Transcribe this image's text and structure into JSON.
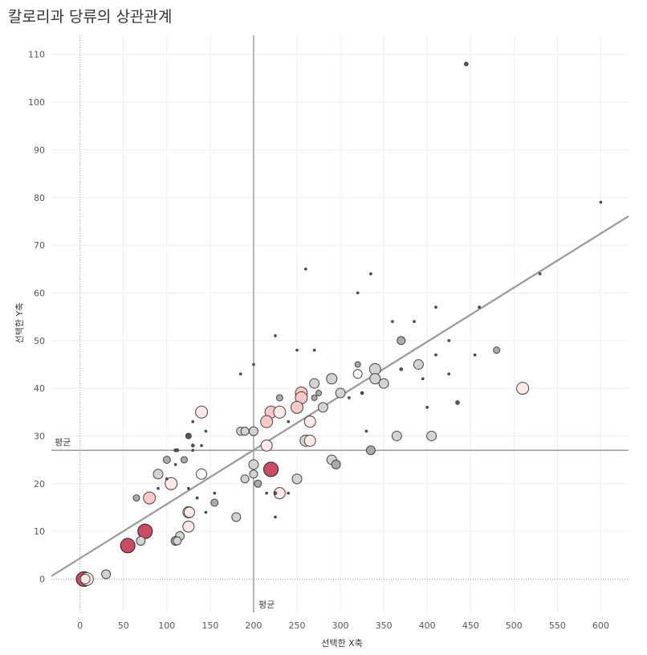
{
  "title": "칼로리과 당류의 상관관계",
  "chart_data": {
    "type": "scatter",
    "title": "칼로리과 당류의 상관관계",
    "xlabel": "선택한 X축",
    "ylabel": "선택한 Y축",
    "xlim": [
      -33,
      632
    ],
    "ylim": [
      -7,
      114
    ],
    "xticks": [
      0,
      50,
      100,
      150,
      200,
      250,
      300,
      350,
      400,
      450,
      500,
      550,
      600
    ],
    "yticks": [
      0,
      10,
      20,
      30,
      40,
      50,
      60,
      70,
      80,
      90,
      100,
      110
    ],
    "grid": true,
    "avg_label": "평균",
    "avg_x": 200,
    "avg_y": 27,
    "trendline": {
      "intercept": 4.35,
      "slope": 0.1135
    },
    "colors": {
      "dark": "#555555",
      "gray": "#aaaaaa",
      "light_gray": "#d3d3d3",
      "white": "#ffffff",
      "pink": "#f7cac6",
      "pink_light": "#fde8e6",
      "red": "#cd4a63"
    },
    "points": [
      {
        "x": 445,
        "y": 108,
        "r": 2.5,
        "c": "dark"
      },
      {
        "x": 600,
        "y": 79,
        "r": 1.5,
        "c": "dark"
      },
      {
        "x": 260,
        "y": 65,
        "r": 1.5,
        "c": "dark"
      },
      {
        "x": 335,
        "y": 64,
        "r": 1.5,
        "c": "dark"
      },
      {
        "x": 530,
        "y": 64,
        "r": 1.5,
        "c": "dark"
      },
      {
        "x": 320,
        "y": 60,
        "r": 1.5,
        "c": "dark"
      },
      {
        "x": 410,
        "y": 57,
        "r": 1.5,
        "c": "dark"
      },
      {
        "x": 460,
        "y": 57,
        "r": 1.5,
        "c": "dark"
      },
      {
        "x": 360,
        "y": 54,
        "r": 1.5,
        "c": "dark"
      },
      {
        "x": 385,
        "y": 54,
        "r": 1.5,
        "c": "dark"
      },
      {
        "x": 225,
        "y": 51,
        "r": 1.5,
        "c": "dark"
      },
      {
        "x": 370,
        "y": 50,
        "r": 5,
        "c": "gray"
      },
      {
        "x": 425,
        "y": 50,
        "r": 1.5,
        "c": "dark"
      },
      {
        "x": 250,
        "y": 48,
        "r": 1.5,
        "c": "dark"
      },
      {
        "x": 270,
        "y": 48,
        "r": 1.5,
        "c": "dark"
      },
      {
        "x": 480,
        "y": 48,
        "r": 4,
        "c": "gray"
      },
      {
        "x": 410,
        "y": 47,
        "r": 1.5,
        "c": "dark"
      },
      {
        "x": 455,
        "y": 47,
        "r": 1.5,
        "c": "dark"
      },
      {
        "x": 200,
        "y": 45,
        "r": 1.5,
        "c": "dark"
      },
      {
        "x": 320,
        "y": 45,
        "r": 3.5,
        "c": "gray"
      },
      {
        "x": 390,
        "y": 45,
        "r": 6,
        "c": "light_gray"
      },
      {
        "x": 340,
        "y": 44,
        "r": 7,
        "c": "light_gray"
      },
      {
        "x": 370,
        "y": 44,
        "r": 2,
        "c": "dark"
      },
      {
        "x": 185,
        "y": 43,
        "r": 1.5,
        "c": "dark"
      },
      {
        "x": 320,
        "y": 43,
        "r": 5.5,
        "c": "white"
      },
      {
        "x": 425,
        "y": 43,
        "r": 1.5,
        "c": "dark"
      },
      {
        "x": 290,
        "y": 42,
        "r": 6.5,
        "c": "light_gray"
      },
      {
        "x": 340,
        "y": 42,
        "r": 6.5,
        "c": "light_gray"
      },
      {
        "x": 395,
        "y": 42,
        "r": 1.5,
        "c": "dark"
      },
      {
        "x": 270,
        "y": 41,
        "r": 6,
        "c": "light_gray"
      },
      {
        "x": 350,
        "y": 41,
        "r": 6,
        "c": "light_gray"
      },
      {
        "x": 510,
        "y": 40,
        "r": 7.5,
        "c": "pink_light"
      },
      {
        "x": 255,
        "y": 39,
        "r": 7.5,
        "c": "pink"
      },
      {
        "x": 275,
        "y": 39,
        "r": 3.5,
        "c": "gray"
      },
      {
        "x": 300,
        "y": 39,
        "r": 6,
        "c": "light_gray"
      },
      {
        "x": 325,
        "y": 39,
        "r": 2,
        "c": "dark"
      },
      {
        "x": 230,
        "y": 38,
        "r": 4,
        "c": "gray"
      },
      {
        "x": 255,
        "y": 38,
        "r": 7.5,
        "c": "pink"
      },
      {
        "x": 270,
        "y": 38,
        "r": 3.5,
        "c": "gray"
      },
      {
        "x": 310,
        "y": 38,
        "r": 1.5,
        "c": "dark"
      },
      {
        "x": 435,
        "y": 37,
        "r": 2.5,
        "c": "dark"
      },
      {
        "x": 250,
        "y": 36,
        "r": 7.5,
        "c": "pink"
      },
      {
        "x": 280,
        "y": 36,
        "r": 6,
        "c": "light_gray"
      },
      {
        "x": 400,
        "y": 36,
        "r": 1.5,
        "c": "dark"
      },
      {
        "x": 140,
        "y": 35,
        "r": 7.5,
        "c": "pink_light"
      },
      {
        "x": 220,
        "y": 35,
        "r": 7.5,
        "c": "pink"
      },
      {
        "x": 230,
        "y": 35,
        "r": 7.5,
        "c": "pink_light"
      },
      {
        "x": 130,
        "y": 33,
        "r": 1.5,
        "c": "dark"
      },
      {
        "x": 215,
        "y": 33,
        "r": 7.5,
        "c": "pink"
      },
      {
        "x": 240,
        "y": 33,
        "r": 1.5,
        "c": "dark"
      },
      {
        "x": 265,
        "y": 33,
        "r": 7,
        "c": "pink_light"
      },
      {
        "x": 145,
        "y": 31,
        "r": 1.5,
        "c": "dark"
      },
      {
        "x": 185,
        "y": 31,
        "r": 5,
        "c": "light_gray"
      },
      {
        "x": 190,
        "y": 31,
        "r": 5,
        "c": "light_gray"
      },
      {
        "x": 200,
        "y": 31,
        "r": 5.5,
        "c": "light_gray"
      },
      {
        "x": 330,
        "y": 31,
        "r": 1.5,
        "c": "dark"
      },
      {
        "x": 125,
        "y": 30,
        "r": 3.5,
        "c": "dark"
      },
      {
        "x": 260,
        "y": 29,
        "r": 7,
        "c": "light_gray"
      },
      {
        "x": 265,
        "y": 29,
        "r": 7,
        "c": "pink_light"
      },
      {
        "x": 365,
        "y": 30,
        "r": 6,
        "c": "light_gray"
      },
      {
        "x": 405,
        "y": 30,
        "r": 6,
        "c": "light_gray"
      },
      {
        "x": 130,
        "y": 28,
        "r": 2,
        "c": "dark"
      },
      {
        "x": 140,
        "y": 28,
        "r": 1.5,
        "c": "dark"
      },
      {
        "x": 215,
        "y": 28,
        "r": 7,
        "c": "pink_light"
      },
      {
        "x": 110,
        "y": 27,
        "r": 2,
        "c": "dark"
      },
      {
        "x": 112,
        "y": 27,
        "r": 2,
        "c": "dark"
      },
      {
        "x": 130,
        "y": 27,
        "r": 1.5,
        "c": "dark"
      },
      {
        "x": 335,
        "y": 27,
        "r": 5.5,
        "c": "gray"
      },
      {
        "x": 100,
        "y": 25,
        "r": 4.5,
        "c": "gray"
      },
      {
        "x": 120,
        "y": 25,
        "r": 4,
        "c": "gray"
      },
      {
        "x": 290,
        "y": 25,
        "r": 6,
        "c": "light_gray"
      },
      {
        "x": 110,
        "y": 24,
        "r": 1.5,
        "c": "dark"
      },
      {
        "x": 200,
        "y": 24,
        "r": 6,
        "c": "light_gray"
      },
      {
        "x": 295,
        "y": 24,
        "r": 5.5,
        "c": "gray"
      },
      {
        "x": 220,
        "y": 23,
        "r": 9,
        "c": "red"
      },
      {
        "x": 90,
        "y": 22,
        "r": 6,
        "c": "light_gray"
      },
      {
        "x": 140,
        "y": 22,
        "r": 6.5,
        "c": "white"
      },
      {
        "x": 200,
        "y": 22,
        "r": 5,
        "c": "light_gray"
      },
      {
        "x": 100,
        "y": 21,
        "r": 1.5,
        "c": "dark"
      },
      {
        "x": 190,
        "y": 21,
        "r": 5,
        "c": "light_gray"
      },
      {
        "x": 250,
        "y": 21,
        "r": 6,
        "c": "light_gray"
      },
      {
        "x": 105,
        "y": 20,
        "r": 7.5,
        "c": "pink_light"
      },
      {
        "x": 205,
        "y": 20,
        "r": 4.5,
        "c": "gray"
      },
      {
        "x": 90,
        "y": 19,
        "r": 1.5,
        "c": "dark"
      },
      {
        "x": 125,
        "y": 19,
        "r": 1.5,
        "c": "dark"
      },
      {
        "x": 155,
        "y": 18,
        "r": 1.5,
        "c": "dark"
      },
      {
        "x": 215,
        "y": 18,
        "r": 1.5,
        "c": "dark"
      },
      {
        "x": 225,
        "y": 18,
        "r": 2,
        "c": "dark"
      },
      {
        "x": 230,
        "y": 18,
        "r": 7,
        "c": "pink_light"
      },
      {
        "x": 240,
        "y": 18,
        "r": 1.5,
        "c": "dark"
      },
      {
        "x": 65,
        "y": 17,
        "r": 4,
        "c": "gray"
      },
      {
        "x": 80,
        "y": 17,
        "r": 7.5,
        "c": "pink"
      },
      {
        "x": 135,
        "y": 17,
        "r": 1.5,
        "c": "dark"
      },
      {
        "x": 155,
        "y": 16,
        "r": 4.5,
        "c": "gray"
      },
      {
        "x": 125,
        "y": 14,
        "r": 7,
        "c": "pink_light"
      },
      {
        "x": 126,
        "y": 14,
        "r": 6.5,
        "c": "pink_light"
      },
      {
        "x": 145,
        "y": 14,
        "r": 1.5,
        "c": "dark"
      },
      {
        "x": 180,
        "y": 13,
        "r": 5.5,
        "c": "light_gray"
      },
      {
        "x": 225,
        "y": 13,
        "r": 1.5,
        "c": "dark"
      },
      {
        "x": 125,
        "y": 11,
        "r": 7,
        "c": "pink_light"
      },
      {
        "x": 75,
        "y": 10,
        "r": 9,
        "c": "red"
      },
      {
        "x": 115,
        "y": 9,
        "r": 5.5,
        "c": "light_gray"
      },
      {
        "x": 70,
        "y": 8,
        "r": 5.5,
        "c": "light_gray"
      },
      {
        "x": 110,
        "y": 8,
        "r": 5.5,
        "c": "gray"
      },
      {
        "x": 112,
        "y": 8,
        "r": 5,
        "c": "light_gray"
      },
      {
        "x": 55,
        "y": 7,
        "r": 9,
        "c": "red"
      },
      {
        "x": 30,
        "y": 1,
        "r": 5.5,
        "c": "light_gray"
      },
      {
        "x": 5,
        "y": 0,
        "r": 9,
        "c": "red"
      },
      {
        "x": 8,
        "y": 0,
        "r": 8,
        "c": "pink_light"
      },
      {
        "x": 4,
        "y": 0,
        "r": 9,
        "c": "red"
      },
      {
        "x": 6,
        "y": 0,
        "r": 6,
        "c": "pink_light"
      }
    ]
  }
}
